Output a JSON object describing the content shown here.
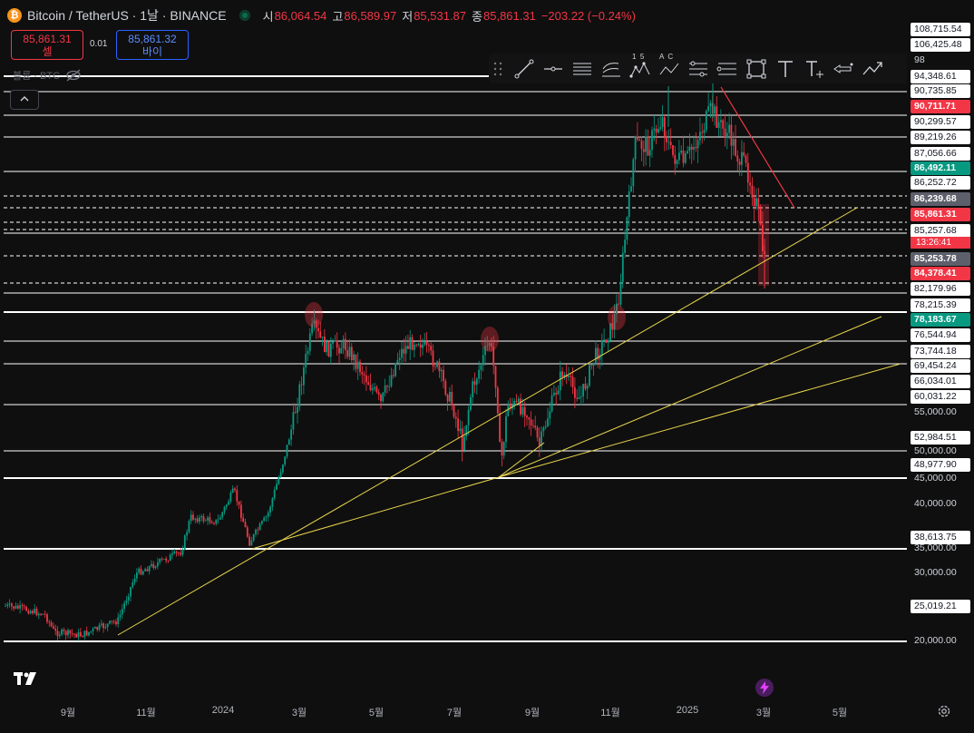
{
  "header": {
    "symbol": "Bitcoin / TetherUS · 1날 · BINANCE",
    "coin_glyph": "₿",
    "open_label": "시",
    "open": "86,064.54",
    "high_label": "고",
    "high": "86,589.97",
    "low_label": "저",
    "low": "85,531.87",
    "close_label": "종",
    "close": "85,861.31",
    "change": "−203.22 (−0.24%)"
  },
  "trade": {
    "sell_price": "85,861.31",
    "sell_label": "셀",
    "spread": "0.01",
    "buy_price": "85,861.32",
    "buy_label": "바이"
  },
  "volume": {
    "label": "볼륨 · BTC"
  },
  "collapse_icon": "chevron-up-icon",
  "drawing_tools": [
    "grip-icon",
    "trend-line-icon",
    "horizontal-ray-icon",
    "parallel-channel-icon",
    "fib-retracement-icon",
    "elliott-wave-icon",
    "abcd-pattern-icon",
    "price-range-icon",
    "long-position-icon",
    "rectangle-icon",
    "text-icon",
    "text-with-arrow-icon",
    "arrow-marker-icon",
    "path-icon"
  ],
  "drawing_tool_text": {
    "elliott_top": "1  5",
    "abcd_top": "A  C"
  },
  "colors": {
    "up": "#089981",
    "down": "#f23645",
    "trend": "#e8d44d",
    "bg": "#0f0f0f"
  },
  "price_axis": {
    "labels": [
      {
        "text": "108,715.54"
      },
      {
        "text": "106,425.48"
      },
      {
        "text": "98"
      },
      {
        "text": "94,348.61"
      },
      {
        "text": "90,735.85"
      },
      {
        "text": "90,711.71"
      },
      {
        "text": "90,299.57"
      },
      {
        "text": "89,219.26"
      },
      {
        "text": "87,056.66"
      },
      {
        "text": "86,492.11"
      },
      {
        "text": "86,252.72"
      },
      {
        "text": "86,239.68"
      },
      {
        "text": "85,861.31"
      },
      {
        "text": "85,257.68"
      },
      {
        "text": "85,253.78"
      },
      {
        "text": "84,378.41"
      },
      {
        "text": "82,179.96"
      },
      {
        "text": "78,215.39"
      },
      {
        "text": "78,183.67"
      },
      {
        "text": "76,544.94"
      },
      {
        "text": "73,744.18"
      },
      {
        "text": "69,454.24"
      },
      {
        "text": "66,034.01"
      },
      {
        "text": "60,031.22"
      },
      {
        "text": "55,000.00"
      },
      {
        "text": "52,984.51"
      },
      {
        "text": "50,000.00"
      },
      {
        "text": "48,977.90"
      },
      {
        "text": "45,000.00"
      },
      {
        "text": "40,000.00"
      },
      {
        "text": "38,613.75"
      },
      {
        "text": "35,000.00"
      },
      {
        "text": "30,000.00"
      },
      {
        "text": "25,019.21"
      },
      {
        "text": "20,000.00"
      }
    ],
    "countdown": "13:26:41"
  },
  "time_axis": [
    "9월",
    "11월",
    "2024",
    "3월",
    "5월",
    "7월",
    "9월",
    "11월",
    "2025",
    "3월",
    "5월"
  ]
}
